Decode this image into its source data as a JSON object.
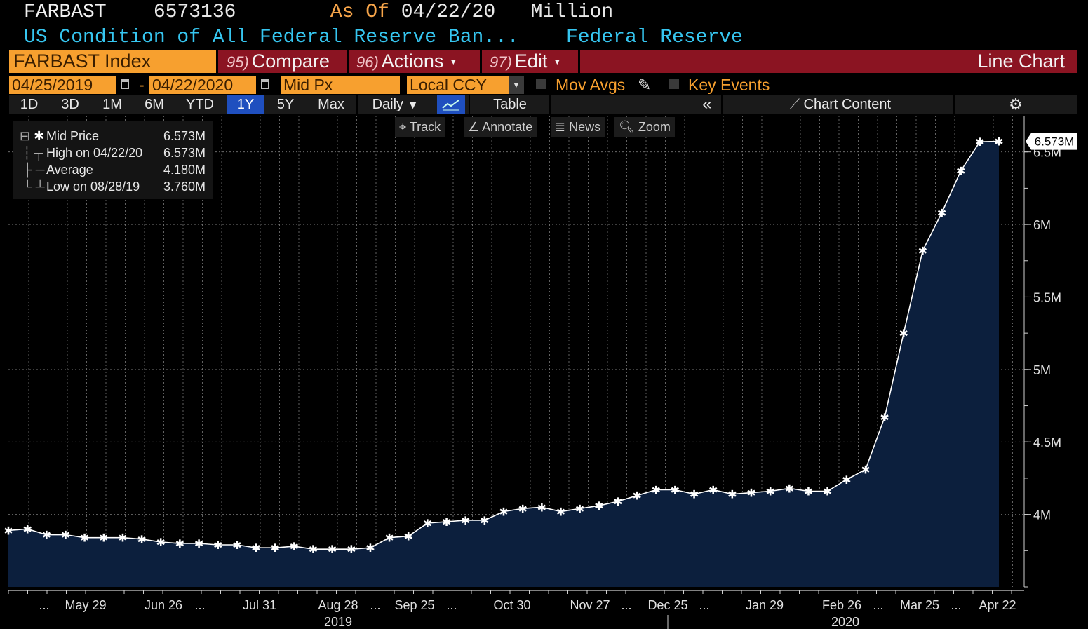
{
  "header": {
    "ticker": "FARBAST",
    "last_value": "6573136",
    "as_of_label": "As Of",
    "as_of_date": "04/22/20",
    "units": "Million",
    "description": "US Condition of All Federal Reserve Ban...",
    "source": "Federal Reserve"
  },
  "toolbar": {
    "security": "FARBAST Index",
    "compare_key": "95)",
    "compare_label": "Compare",
    "actions_key": "96)",
    "actions_label": "Actions",
    "edit_key": "97)",
    "edit_label": "Edit",
    "chart_type": "Line Chart",
    "start_date": "04/25/2019",
    "date_sep": "-",
    "end_date": "04/22/2020",
    "field": "Mid Px",
    "currency": "Local CCY",
    "mov_avgs": "Mov Avgs",
    "key_events": "Key Events",
    "periods": [
      "1D",
      "3D",
      "1M",
      "6M",
      "YTD",
      "1Y",
      "5Y",
      "Max"
    ],
    "active_period": "1Y",
    "frequency": "Daily",
    "table_label": "Table",
    "collapse_label": "«",
    "chart_content_label": "Chart Content"
  },
  "chart_tools": {
    "track": "Track",
    "annotate": "Annotate",
    "news": "News",
    "zoom": "Zoom"
  },
  "legend": {
    "rows": [
      {
        "name": "Mid Price",
        "value": "6.573M"
      },
      {
        "name": "High on 04/22/20",
        "value": "6.573M"
      },
      {
        "name": "Average",
        "value": "4.180M"
      },
      {
        "name": "Low on 08/28/19",
        "value": "3.760M"
      }
    ]
  },
  "colors": {
    "background": "#000000",
    "area_fill": "#0c1f3d",
    "line": "#ffffff",
    "accent_orange": "#f7a02f",
    "toolbar_red": "#8b1422",
    "header_cyan": "#36c6f0"
  },
  "chart_data": {
    "type": "area",
    "series": [
      {
        "name": "Mid Price",
        "x": [
          "2019-04-24",
          "2019-05-01",
          "2019-05-08",
          "2019-05-15",
          "2019-05-22",
          "2019-05-29",
          "2019-06-05",
          "2019-06-12",
          "2019-06-19",
          "2019-06-26",
          "2019-07-03",
          "2019-07-10",
          "2019-07-17",
          "2019-07-24",
          "2019-07-31",
          "2019-08-07",
          "2019-08-14",
          "2019-08-21",
          "2019-08-28",
          "2019-09-04",
          "2019-09-11",
          "2019-09-18",
          "2019-09-25",
          "2019-10-02",
          "2019-10-09",
          "2019-10-16",
          "2019-10-23",
          "2019-10-30",
          "2019-11-06",
          "2019-11-13",
          "2019-11-20",
          "2019-11-27",
          "2019-12-04",
          "2019-12-11",
          "2019-12-18",
          "2019-12-25",
          "2020-01-01",
          "2020-01-08",
          "2020-01-15",
          "2020-01-22",
          "2020-01-29",
          "2020-02-05",
          "2020-02-12",
          "2020-02-19",
          "2020-02-26",
          "2020-03-04",
          "2020-03-11",
          "2020-03-18",
          "2020-03-25",
          "2020-04-01",
          "2020-04-08",
          "2020-04-15",
          "2020-04-22"
        ],
        "values": [
          3.89,
          3.9,
          3.86,
          3.86,
          3.84,
          3.84,
          3.84,
          3.83,
          3.81,
          3.8,
          3.8,
          3.79,
          3.79,
          3.77,
          3.77,
          3.78,
          3.76,
          3.76,
          3.76,
          3.77,
          3.84,
          3.85,
          3.94,
          3.95,
          3.96,
          3.96,
          4.02,
          4.04,
          4.05,
          4.02,
          4.04,
          4.06,
          4.09,
          4.13,
          4.17,
          4.17,
          4.14,
          4.17,
          4.14,
          4.15,
          4.16,
          4.18,
          4.16,
          4.16,
          4.24,
          4.31,
          4.67,
          5.25,
          5.82,
          6.08,
          6.37,
          6.57,
          6.573
        ]
      }
    ],
    "y_ticks": [
      "6.5M",
      "6M",
      "5.5M",
      "5M",
      "4.5M",
      "4M"
    ],
    "y_tick_values": [
      6.5,
      6.0,
      5.5,
      5.0,
      4.5,
      4.0
    ],
    "ylim": [
      3.5,
      6.75
    ],
    "x_tick_labels": [
      "...",
      "May 29",
      "Jun 26",
      "...",
      "Jul 31",
      "Aug 28",
      "...",
      "Sep 25",
      "...",
      "Oct 30",
      "Nov 27",
      "...",
      "Dec 25",
      "...",
      "Jan 29",
      "Feb 26",
      "...",
      "Mar 25",
      "...",
      "Apr 22"
    ],
    "year_labels": [
      "2019",
      "2020"
    ],
    "last_value_label": "6.573M",
    "grid": true
  }
}
